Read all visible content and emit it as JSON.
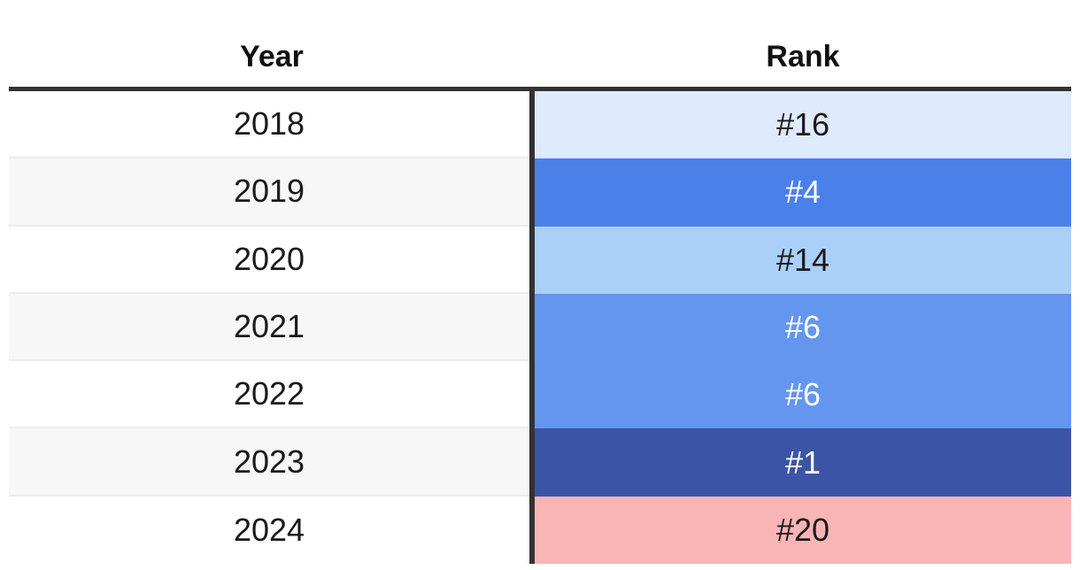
{
  "page": {
    "background": "#ffffff"
  },
  "table": {
    "columns": [
      {
        "label": "Year"
      },
      {
        "label": "Rank"
      }
    ],
    "rows": [
      {
        "year": "2018",
        "rank": "#16",
        "rank_bg": "#dfeafd",
        "rank_text": "#1a1a1a"
      },
      {
        "year": "2019",
        "rank": "#4",
        "rank_bg": "#4a80e8",
        "rank_text": "#ffffff"
      },
      {
        "year": "2020",
        "rank": "#14",
        "rank_bg": "#aacff9",
        "rank_text": "#1a1a1a"
      },
      {
        "year": "2021",
        "rank": "#6",
        "rank_bg": "#6496ef",
        "rank_text": "#ffffff"
      },
      {
        "year": "2022",
        "rank": "#6",
        "rank_bg": "#6496ef",
        "rank_text": "#ffffff"
      },
      {
        "year": "2023",
        "rank": "#1",
        "rank_bg": "#3b54a5",
        "rank_text": "#ffffff"
      },
      {
        "year": "2024",
        "rank": "#20",
        "rank_bg": "#f9b4b6",
        "rank_text": "#1a1a1a"
      }
    ],
    "style_colors": {
      "header_border": "#323232",
      "column_divider": "#323232",
      "row_separator": "#ececec",
      "alt_row_bg": "#f7f7f7",
      "text": "#1a1a1a"
    }
  },
  "chart_data": {
    "type": "table",
    "columns": [
      "Year",
      "Rank"
    ],
    "categories": [
      2018,
      2019,
      2020,
      2021,
      2022,
      2023,
      2024
    ],
    "values": [
      16,
      4,
      14,
      6,
      6,
      1,
      20
    ],
    "cell_colors": [
      "#dfeafd",
      "#4a80e8",
      "#aacff9",
      "#6496ef",
      "#6496ef",
      "#3b54a5",
      "#f9b4b6"
    ],
    "encoding": "Rank cells heat-colored: best rank (#1) darkest blue, mid ranks medium/light blue, worst rank (#20) pink",
    "legend": "none",
    "grid": "row separators only"
  }
}
